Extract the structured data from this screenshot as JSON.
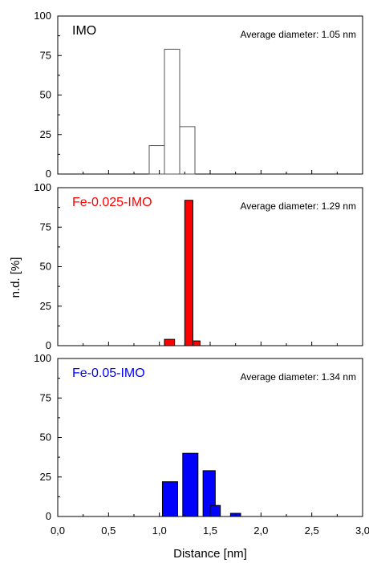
{
  "chart_data": {
    "type": "bar",
    "xlabel": "Distance [nm]",
    "ylabel": "n.d. [%]",
    "xlim": [
      0,
      3
    ],
    "ylim": [
      0,
      100
    ],
    "xticks": [
      "0,0",
      "0,5",
      "1,0",
      "1,5",
      "2,0",
      "2,5",
      "3,0"
    ],
    "yticks": [
      "0",
      "25",
      "50",
      "75",
      "100"
    ],
    "panels": [
      {
        "label": "IMO",
        "label_color": "#000000",
        "annotation": "Average diameter: 1.05 nm",
        "bar_fill": "#ffffff",
        "bar_stroke": "#555555",
        "bars": [
          {
            "x_start": 0.9,
            "x_end": 1.05,
            "value": 18
          },
          {
            "x_start": 1.05,
            "x_end": 1.2,
            "value": 79
          },
          {
            "x_start": 1.2,
            "x_end": 1.35,
            "value": 30
          }
        ]
      },
      {
        "label": "Fe-0.025-IMO",
        "label_color": "#ff0000",
        "annotation": "Average diameter: 1.29 nm",
        "bar_fill": "#ff0000",
        "bar_stroke": "#000000",
        "bars": [
          {
            "x_start": 1.05,
            "x_end": 1.15,
            "value": 4
          },
          {
            "x_start": 1.25,
            "x_end": 1.33,
            "value": 92
          },
          {
            "x_start": 1.33,
            "x_end": 1.4,
            "value": 3
          }
        ]
      },
      {
        "label": "Fe-0.05-IMO",
        "label_color": "#0000ff",
        "annotation": "Average diameter: 1.34 nm",
        "bar_fill": "#0000ff",
        "bar_stroke": "#000000",
        "bars": [
          {
            "x_start": 1.03,
            "x_end": 1.18,
            "value": 22
          },
          {
            "x_start": 1.23,
            "x_end": 1.38,
            "value": 40
          },
          {
            "x_start": 1.43,
            "x_end": 1.55,
            "value": 29
          },
          {
            "x_start": 1.5,
            "x_end": 1.6,
            "value": 7
          },
          {
            "x_start": 1.7,
            "x_end": 1.8,
            "value": 2
          }
        ]
      }
    ]
  }
}
